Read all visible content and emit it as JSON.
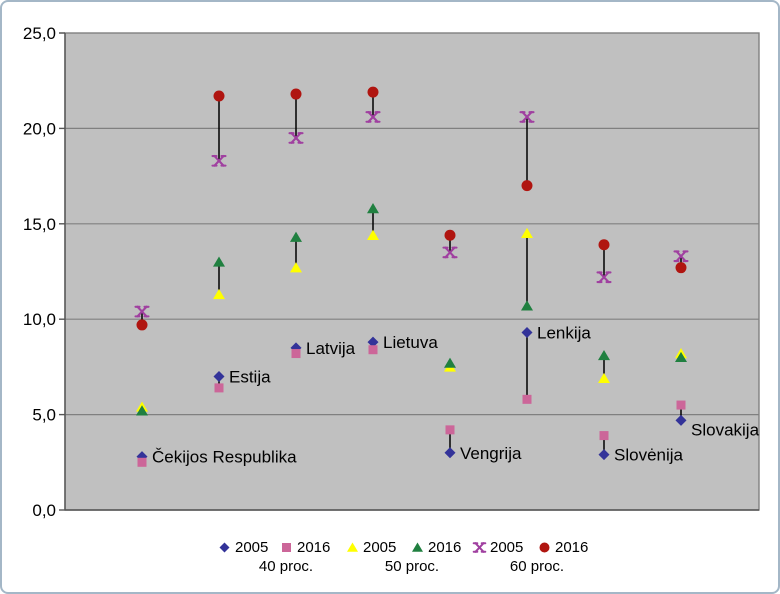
{
  "frame": {
    "border_color": "#a4b7c7"
  },
  "chart_data": {
    "type": "scatter",
    "title": "",
    "xlabel": "",
    "ylabel": "",
    "ylim": [
      0,
      25
    ],
    "y_tick_labels": [
      "0,0",
      "5,0",
      "10,0",
      "15,0",
      "20,0",
      "25,0"
    ],
    "grid": true,
    "plot_bg_color": "#c0c0c0",
    "gridline_color": "#808080",
    "hi_lo_line_color": "#000000",
    "categories": [
      "Čekijos Respublika",
      "Estija",
      "Latvija",
      "Lietuva",
      "Vengrija",
      "Lenkija",
      "Slovėnija",
      "Slovakija"
    ],
    "series": [
      {
        "name": "2005",
        "group": "40 proc.",
        "marker": "diamond",
        "color": "#333399",
        "values": [
          2.8,
          7.0,
          8.5,
          8.8,
          3.0,
          9.3,
          2.9,
          4.7
        ]
      },
      {
        "name": "2016",
        "group": "40 proc.",
        "marker": "square",
        "color": "#cc6699",
        "values": [
          2.5,
          6.4,
          8.2,
          8.4,
          4.2,
          5.8,
          3.9,
          5.5
        ]
      },
      {
        "name": "2005",
        "group": "50 proc.",
        "marker": "triangle",
        "color": "#ffff00",
        "values": [
          5.4,
          11.3,
          12.7,
          14.4,
          7.5,
          14.5,
          6.9,
          8.2
        ]
      },
      {
        "name": "2016",
        "group": "50 proc.",
        "marker": "triangle",
        "color": "#208040",
        "values": [
          5.2,
          13.0,
          14.3,
          15.8,
          7.7,
          10.7,
          8.1,
          8.0
        ]
      },
      {
        "name": "2005",
        "group": "60 proc.",
        "marker": "x",
        "color": "#a040a0",
        "values": [
          10.4,
          18.3,
          19.5,
          20.6,
          13.5,
          20.6,
          12.2,
          13.3
        ]
      },
      {
        "name": "2016",
        "group": "60 proc.",
        "marker": "circle",
        "color": "#b01510",
        "values": [
          9.7,
          21.7,
          21.8,
          21.9,
          14.4,
          17.0,
          13.9,
          12.7
        ]
      }
    ],
    "pair_connectors": [
      [
        0,
        1
      ],
      [
        2,
        3
      ],
      [
        4,
        5
      ]
    ],
    "legend": {
      "position": "bottom",
      "entries": [
        {
          "label": "2005",
          "marker": "diamond",
          "color": "#333399"
        },
        {
          "label": "2016",
          "marker": "square",
          "color": "#cc6699"
        },
        {
          "label": "2005",
          "marker": "triangle",
          "color": "#ffff00"
        },
        {
          "label": "2016",
          "marker": "triangle",
          "color": "#208040"
        },
        {
          "label": "2005",
          "marker": "x",
          "color": "#a040a0"
        },
        {
          "label": "2016",
          "marker": "circle",
          "color": "#b01510"
        }
      ],
      "groups": [
        "40 proc.",
        "50 proc.",
        "60 proc."
      ]
    }
  }
}
